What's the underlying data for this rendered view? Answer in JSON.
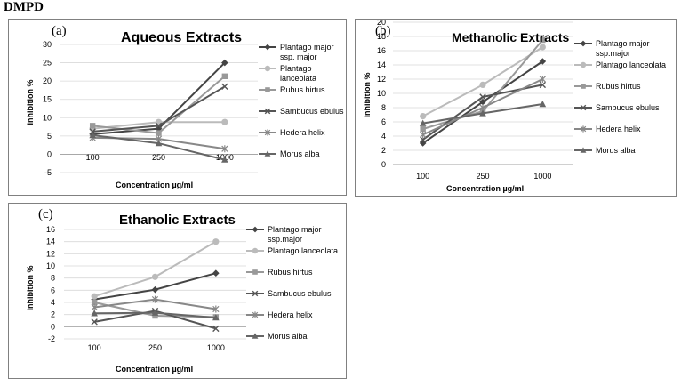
{
  "heading": "DMPD",
  "chart_data": [
    {
      "type": "line",
      "panel_label": "(a)",
      "title": "Aqueous Extracts",
      "xlabel": "Concentration µg/ml",
      "ylabel": "Inhibition %",
      "categories": [
        "100",
        "250",
        "1000"
      ],
      "ylim": [
        -5,
        30
      ],
      "yticks": [
        -5,
        0,
        5,
        10,
        15,
        20,
        25,
        30
      ],
      "grid": true,
      "legend_position": "right",
      "series": [
        {
          "name": "Plantago major ssp. major",
          "legend_lines": [
            "Plantago major",
            "ssp. major"
          ],
          "values": [
            5.5,
            7.0,
            25.0
          ],
          "color": "#444444",
          "marker": "diamond"
        },
        {
          "name": "Plantago lanceolata",
          "legend_lines": [
            "Plantago",
            "lanceolata"
          ],
          "values": [
            7.0,
            8.8,
            8.8
          ],
          "color": "#bbbbbb",
          "marker": "circle"
        },
        {
          "name": "Rubus hirtus",
          "legend_lines": [
            "Rubus hirtus"
          ],
          "values": [
            7.8,
            5.8,
            21.3
          ],
          "color": "#999999",
          "marker": "square"
        },
        {
          "name": "Sambucus ebulus",
          "legend_lines": [
            "Sambucus ebulus"
          ],
          "values": [
            6.2,
            7.8,
            18.5
          ],
          "color": "#555555",
          "marker": "x"
        },
        {
          "name": "Hedera helix",
          "legend_lines": [
            "Hedera helix"
          ],
          "values": [
            4.5,
            4.2,
            1.5
          ],
          "color": "#888888",
          "marker": "star"
        },
        {
          "name": "Morus alba",
          "legend_lines": [
            "Morus alba"
          ],
          "values": [
            5.2,
            3.0,
            -1.5
          ],
          "color": "#666666",
          "marker": "triangle"
        }
      ]
    },
    {
      "type": "line",
      "panel_label": "(b)",
      "title": "Methanolic Extracts",
      "xlabel": "Concentration µg/ml",
      "ylabel": "Inhibition %",
      "categories": [
        "100",
        "250",
        "1000"
      ],
      "ylim": [
        0,
        20
      ],
      "yticks": [
        0,
        2,
        4,
        6,
        8,
        10,
        12,
        14,
        16,
        18,
        20
      ],
      "grid": true,
      "legend_position": "right",
      "series": [
        {
          "name": "Plantago major ssp.major",
          "legend_lines": [
            "Plantago major",
            "ssp.major"
          ],
          "values": [
            3.0,
            8.8,
            14.5
          ],
          "color": "#444444",
          "marker": "diamond"
        },
        {
          "name": "Plantago lanceolata",
          "legend_lines": [
            "Plantago lanceolata"
          ],
          "values": [
            6.8,
            11.2,
            16.5
          ],
          "color": "#bbbbbb",
          "marker": "circle"
        },
        {
          "name": "Rubus hirtus",
          "legend_lines": [
            "Rubus hirtus"
          ],
          "values": [
            5.0,
            7.5,
            17.5
          ],
          "color": "#999999",
          "marker": "square"
        },
        {
          "name": "Sambucus ebulus",
          "legend_lines": [
            "Sambucus ebulus"
          ],
          "values": [
            3.5,
            9.5,
            11.2
          ],
          "color": "#555555",
          "marker": "x"
        },
        {
          "name": "Hedera helix",
          "legend_lines": [
            "Hedera helix"
          ],
          "values": [
            4.2,
            8.0,
            12.0
          ],
          "color": "#888888",
          "marker": "star"
        },
        {
          "name": "Morus alba",
          "legend_lines": [
            "Morus alba"
          ],
          "values": [
            5.8,
            7.2,
            8.5
          ],
          "color": "#666666",
          "marker": "triangle"
        }
      ]
    },
    {
      "type": "line",
      "panel_label": "(c)",
      "title": "Ethanolic Extracts",
      "xlabel": "Concentration µg/ml",
      "ylabel": "Inhibition %",
      "categories": [
        "100",
        "250",
        "1000"
      ],
      "ylim": [
        -2,
        16
      ],
      "yticks": [
        -2,
        0,
        2,
        4,
        6,
        8,
        10,
        12,
        14,
        16
      ],
      "grid": true,
      "legend_position": "right",
      "series": [
        {
          "name": "Plantago major ssp.major",
          "legend_lines": [
            "Plantago major",
            "ssp.major"
          ],
          "values": [
            4.5,
            6.1,
            8.8
          ],
          "color": "#444444",
          "marker": "diamond"
        },
        {
          "name": "Plantago lanceolata",
          "legend_lines": [
            "Plantago lanceolata"
          ],
          "values": [
            5.0,
            8.2,
            14.0
          ],
          "color": "#bbbbbb",
          "marker": "circle"
        },
        {
          "name": "Rubus hirtus",
          "legend_lines": [
            "Rubus hirtus"
          ],
          "values": [
            4.0,
            1.8,
            1.6
          ],
          "color": "#999999",
          "marker": "square"
        },
        {
          "name": "Sambucus ebulus",
          "legend_lines": [
            "Sambucus ebulus"
          ],
          "values": [
            0.8,
            2.6,
            -0.3
          ],
          "color": "#555555",
          "marker": "x"
        },
        {
          "name": "Hedera helix",
          "legend_lines": [
            "Hedera helix"
          ],
          "values": [
            3.2,
            4.5,
            2.9
          ],
          "color": "#888888",
          "marker": "star"
        },
        {
          "name": "Morus alba",
          "legend_lines": [
            "Morus alba"
          ],
          "values": [
            2.2,
            2.3,
            1.5
          ],
          "color": "#666666",
          "marker": "triangle"
        }
      ]
    }
  ]
}
